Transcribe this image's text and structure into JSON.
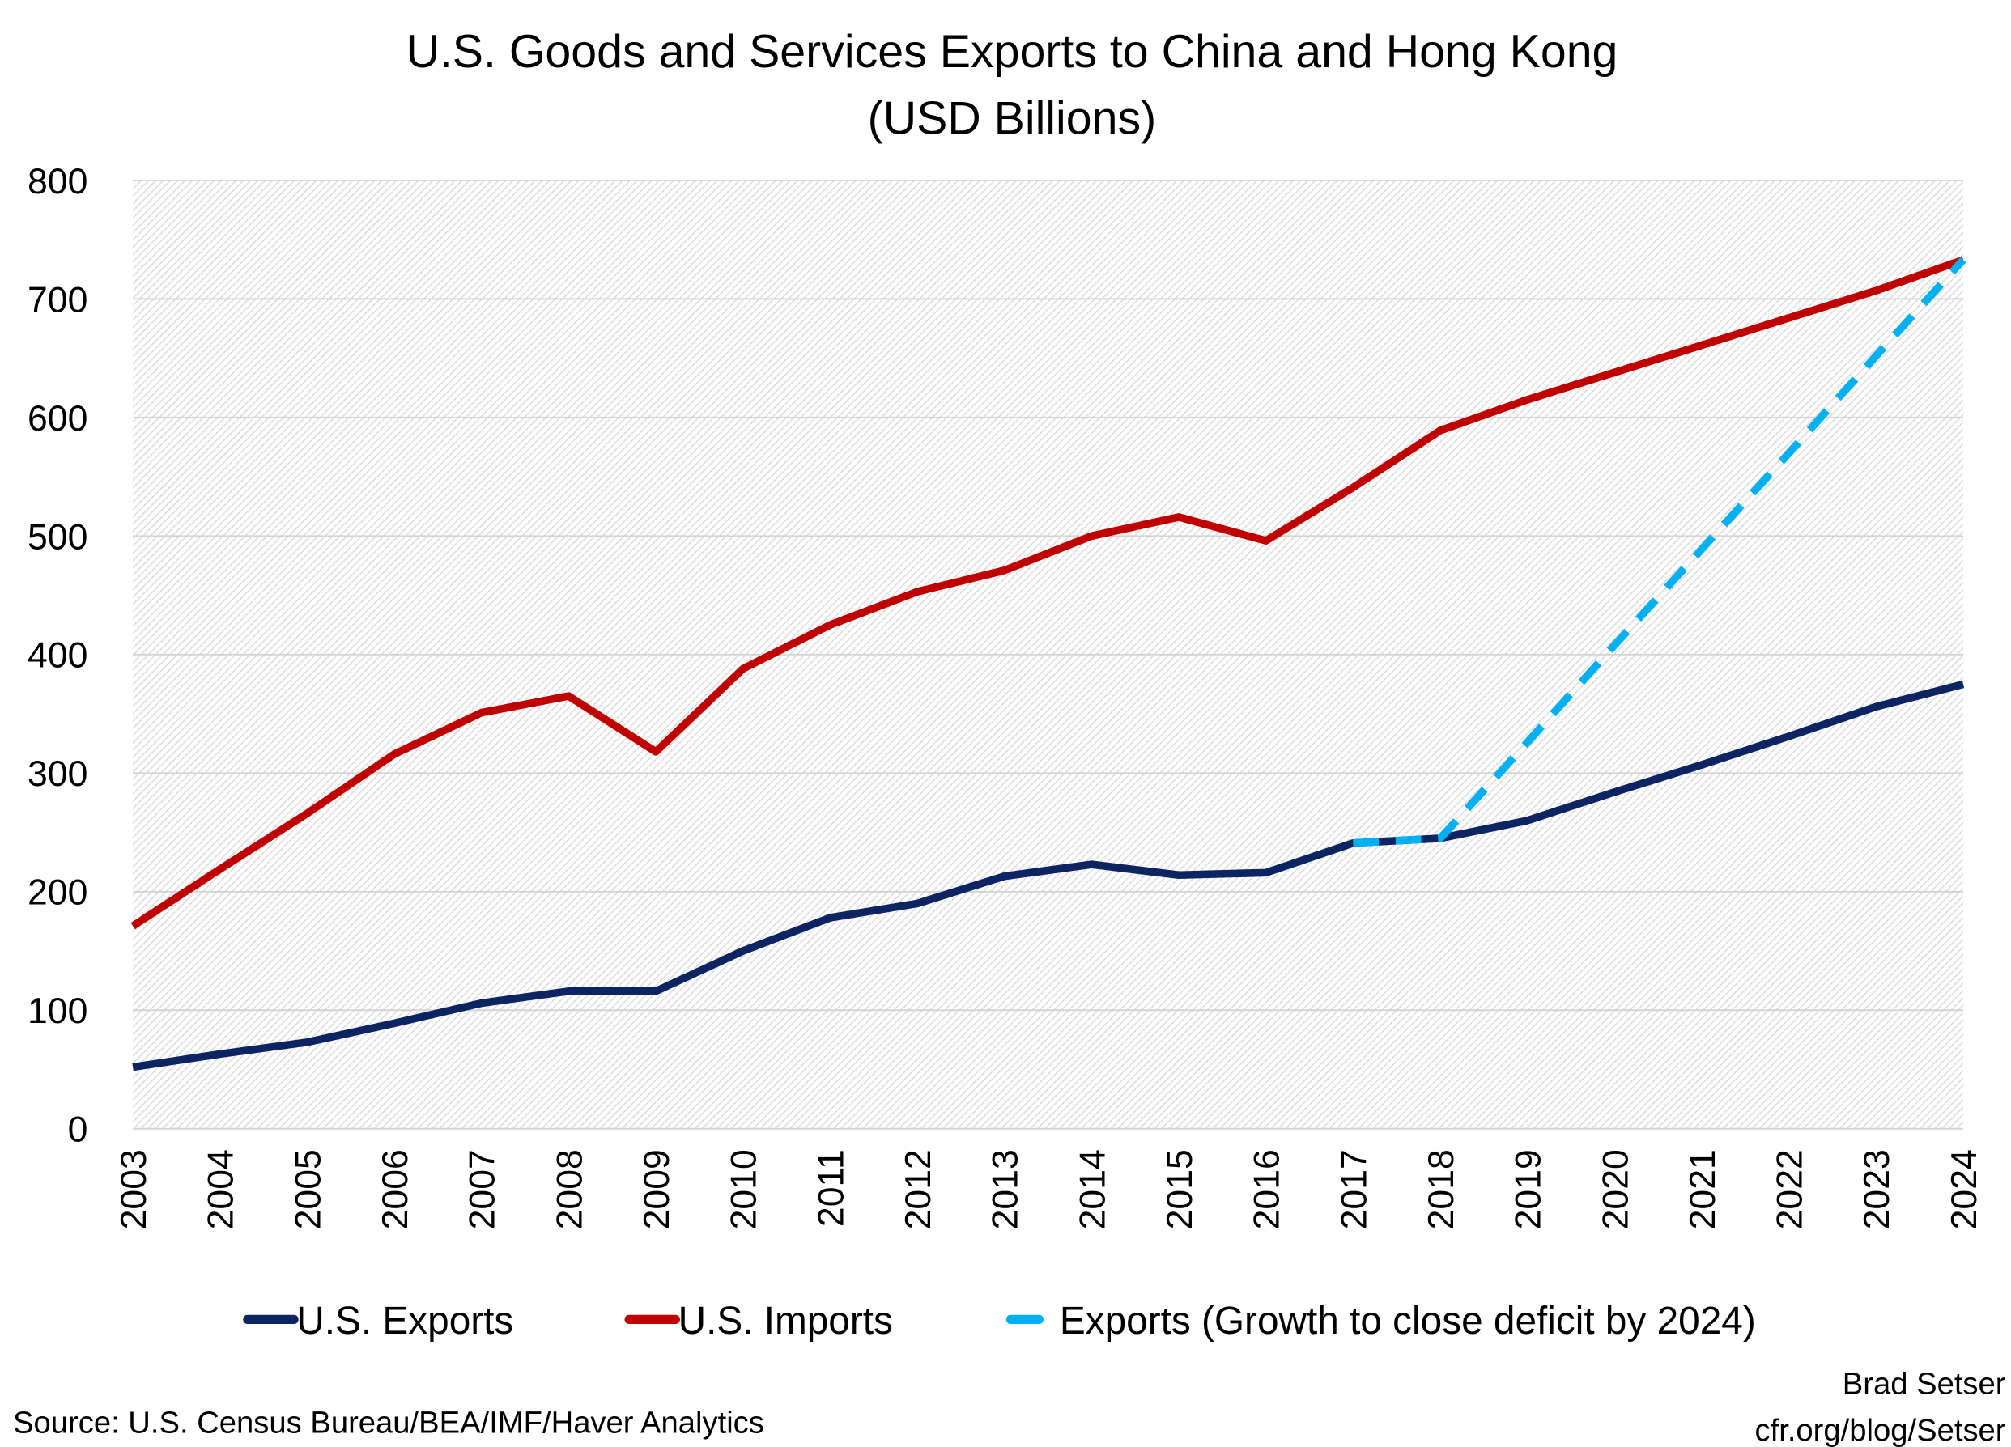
{
  "chart_data": {
    "type": "line",
    "title": "U.S. Goods and Services Exports to China and Hong Kong",
    "subtitle": "(USD Billions)",
    "xlabel": "",
    "ylabel": "",
    "ylim": [
      0,
      800
    ],
    "yticks": [
      "0",
      "100",
      "200",
      "300",
      "400",
      "500",
      "600",
      "700",
      "800"
    ],
    "categories": [
      "2003",
      "2004",
      "2005",
      "2006",
      "2007",
      "2008",
      "2009",
      "2010",
      "2011",
      "2012",
      "2013",
      "2014",
      "2015",
      "2016",
      "2017",
      "2018",
      "2019",
      "2020",
      "2021",
      "2022",
      "2023",
      "2024"
    ],
    "grid": true,
    "legend_position": "bottom",
    "series": [
      {
        "name": "U.S. Exports",
        "color": "#0c2461",
        "style": "solid",
        "values": [
          52,
          63,
          73,
          89,
          106,
          116,
          116,
          150,
          178,
          190,
          213,
          223,
          214,
          216,
          241,
          245,
          260,
          284,
          307,
          331,
          356,
          375
        ]
      },
      {
        "name": "U.S. Imports",
        "color": "#c00000",
        "style": "solid",
        "values": [
          171,
          219,
          266,
          316,
          351,
          365,
          318,
          388,
          425,
          453,
          471,
          500,
          516,
          496,
          541,
          589,
          615,
          638,
          661,
          684,
          707,
          733
        ]
      },
      {
        "name": "Exports (Growth to close deficit by 2024)",
        "color": "#00b0f0",
        "style": "dashed",
        "values": [
          null,
          null,
          null,
          null,
          null,
          null,
          null,
          null,
          null,
          null,
          null,
          null,
          null,
          null,
          241,
          245,
          326,
          408,
          489,
          570,
          652,
          733
        ]
      }
    ],
    "source": "Source: U.S. Census Bureau/BEA/IMF/Haver Analytics",
    "credit_name": "Brad Setser",
    "credit_url": "cfr.org/blog/Setser"
  }
}
